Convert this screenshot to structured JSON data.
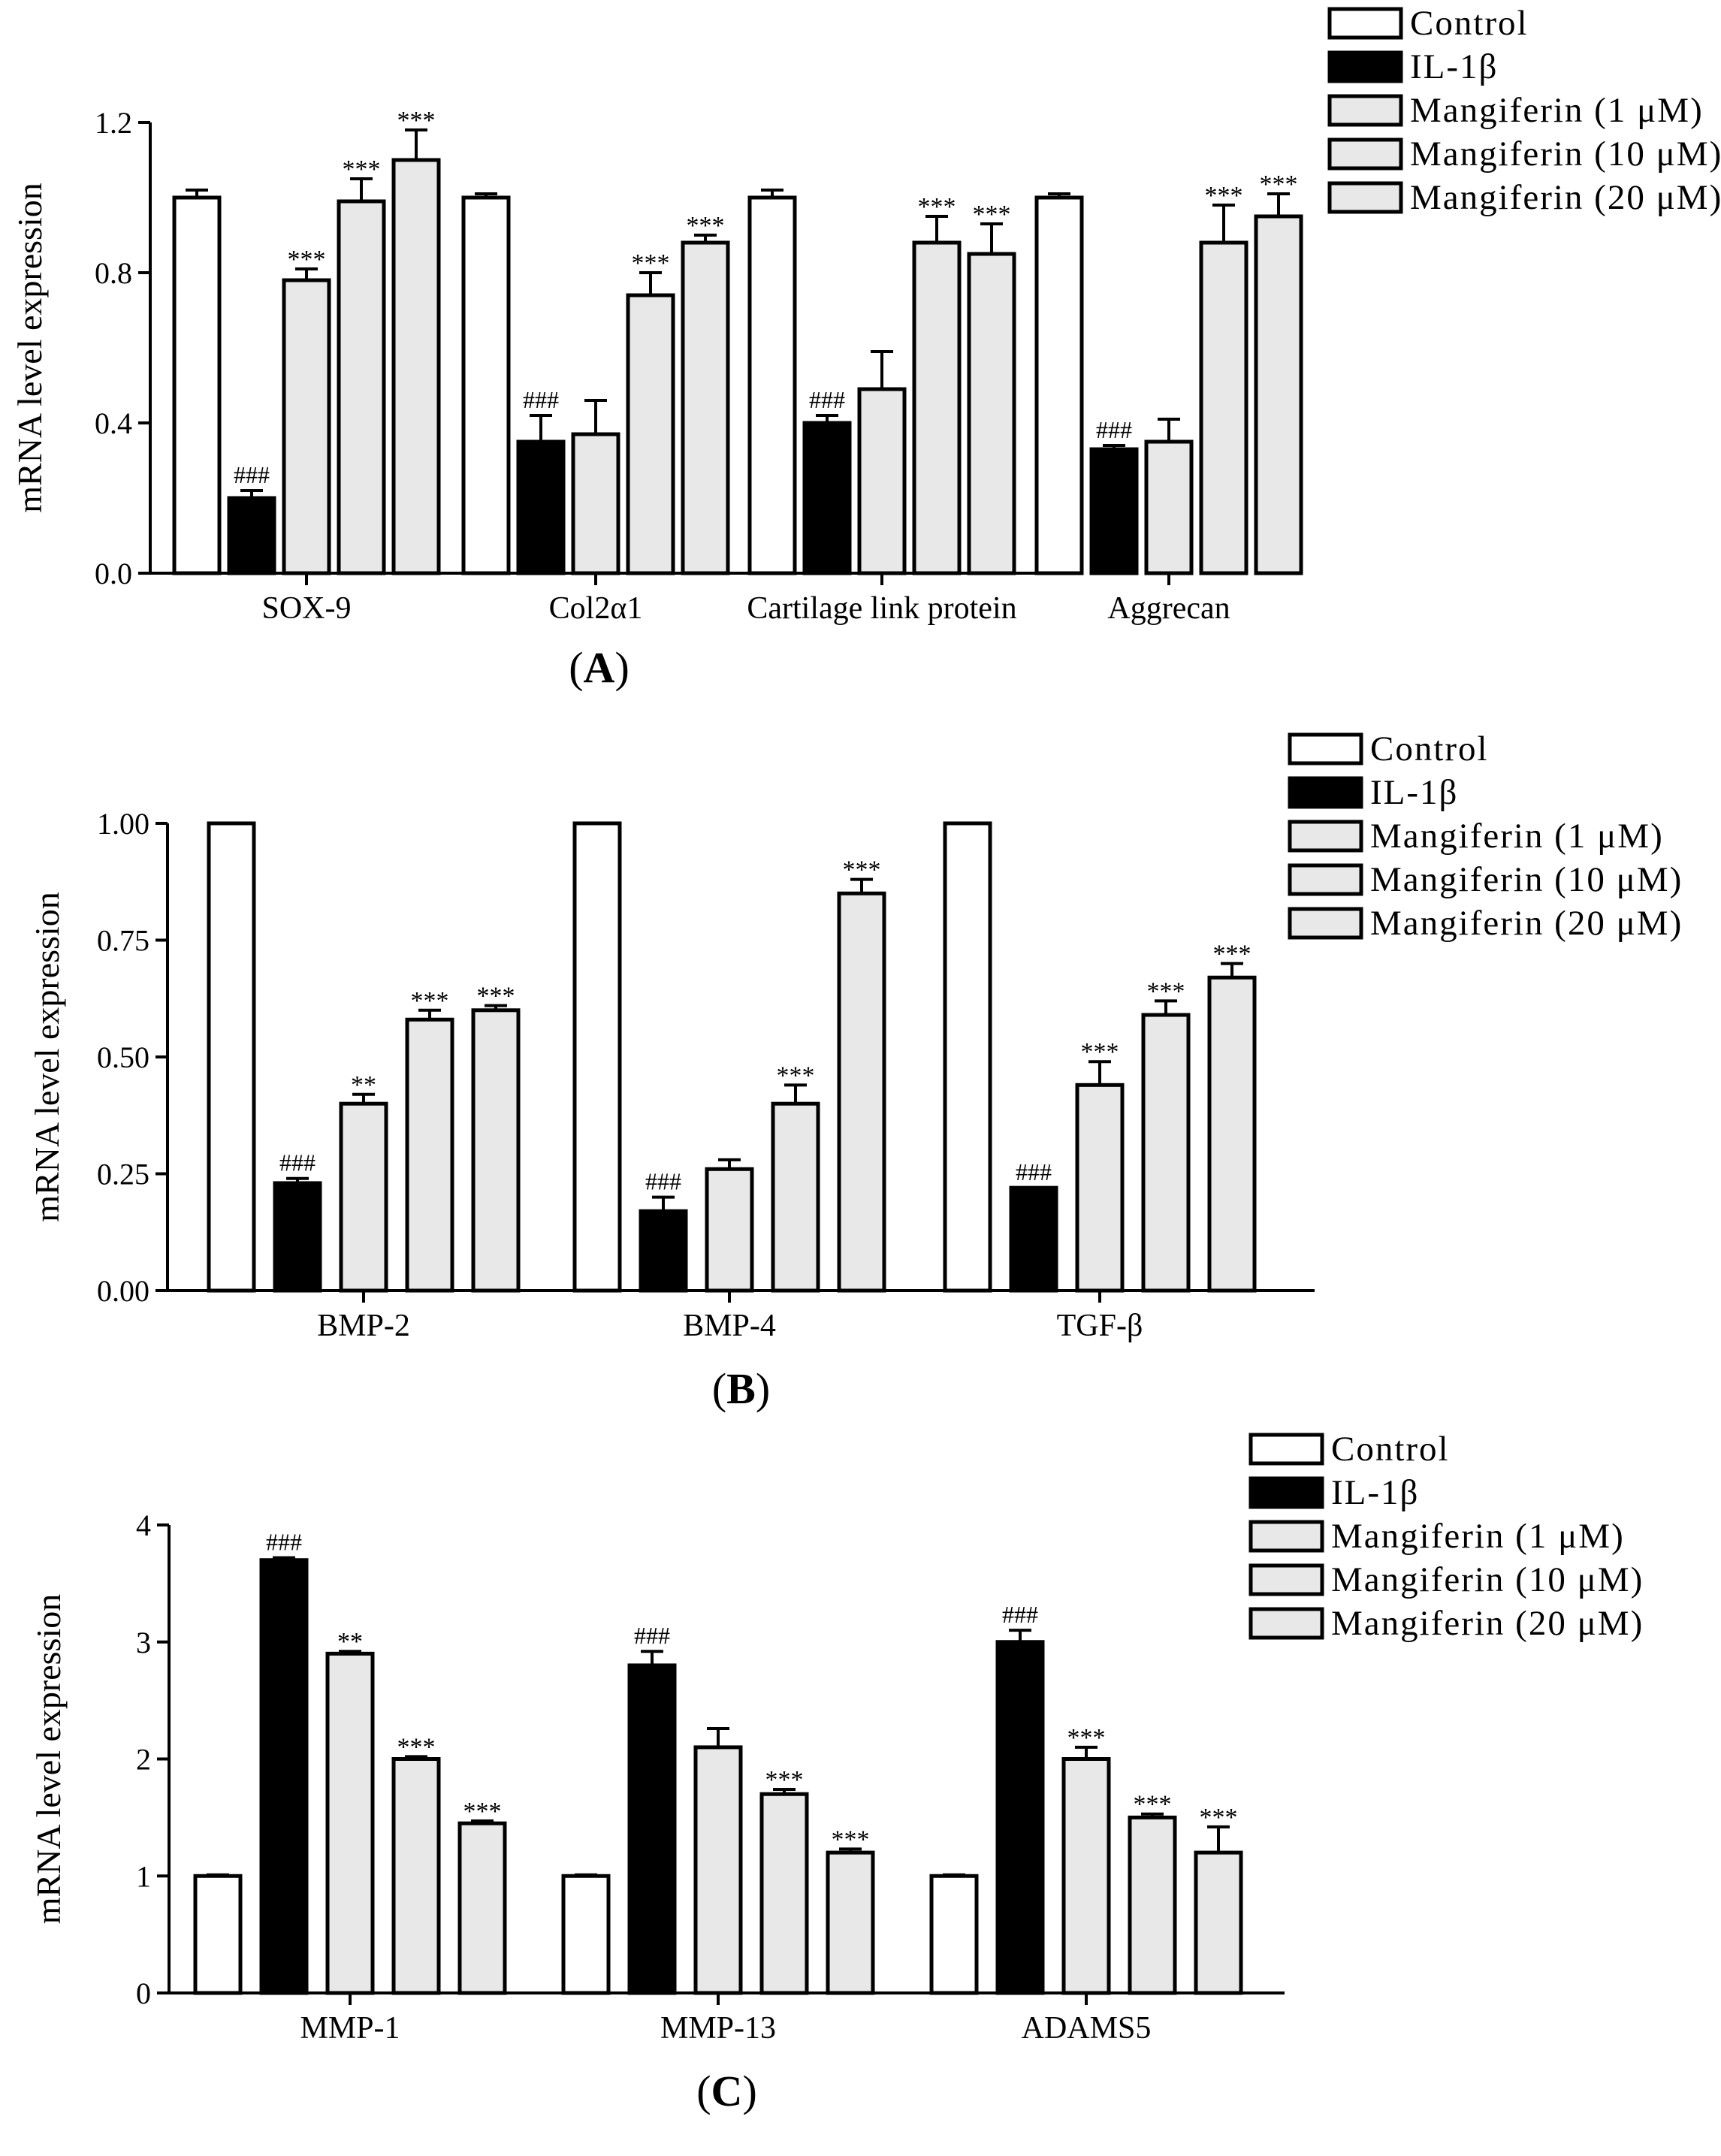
{
  "chart_data": [
    {
      "panel": "(A)",
      "panel_letter": "A",
      "type": "bar",
      "ylabel": "mRNA level expression",
      "ylim": [
        0,
        1.2
      ],
      "yticks": [
        0,
        0.4,
        0.8,
        1.2
      ],
      "ytick_labels": [
        "0.0",
        "0.4",
        "0.8",
        "1.2"
      ],
      "categories": [
        "SOX-9",
        "Col2α1",
        "Cartilage link protein",
        "Aggrecan"
      ],
      "series": [
        {
          "name": "Control",
          "values": [
            1.0,
            1.0,
            1.0,
            1.0
          ],
          "errors": [
            0.02,
            0.01,
            0.02,
            0.01
          ],
          "annotations": [
            "",
            "",
            "",
            ""
          ]
        },
        {
          "name": "IL-1β",
          "values": [
            0.2,
            0.35,
            0.4,
            0.33
          ],
          "errors": [
            0.02,
            0.07,
            0.02,
            0.01
          ],
          "annotations": [
            "###",
            "###",
            "###",
            "###"
          ]
        },
        {
          "name": "Mangiferin (1 μM)",
          "values": [
            0.78,
            0.37,
            0.49,
            0.35
          ],
          "errors": [
            0.03,
            0.09,
            0.1,
            0.06
          ],
          "annotations": [
            "***",
            "",
            "",
            ""
          ]
        },
        {
          "name": "Mangiferin (10 μM)",
          "values": [
            0.99,
            0.74,
            0.88,
            0.88
          ],
          "errors": [
            0.06,
            0.06,
            0.07,
            0.1
          ],
          "annotations": [
            "***",
            "***",
            "***",
            "***"
          ]
        },
        {
          "name": "Mangiferin (20 μM)",
          "values": [
            1.1,
            0.88,
            0.85,
            0.95
          ],
          "errors": [
            0.08,
            0.02,
            0.08,
            0.06
          ],
          "annotations": [
            "***",
            "***",
            "***",
            "***"
          ]
        }
      ]
    },
    {
      "panel": "(B)",
      "panel_letter": "B",
      "type": "bar",
      "ylabel": "mRNA level expression",
      "ylim": [
        0,
        1.0
      ],
      "yticks": [
        0,
        0.25,
        0.5,
        0.75,
        1.0
      ],
      "ytick_labels": [
        "0.00",
        "0.25",
        "0.50",
        "0.75",
        "1.00"
      ],
      "categories": [
        "BMP-2",
        "BMP-4",
        "TGF-β"
      ],
      "series": [
        {
          "name": "Control",
          "values": [
            1.0,
            1.0,
            1.0
          ],
          "errors": [
            0,
            0,
            0
          ],
          "annotations": [
            "",
            "",
            ""
          ]
        },
        {
          "name": "IL-1β",
          "values": [
            0.23,
            0.17,
            0.22
          ],
          "errors": [
            0.01,
            0.03,
            0.0
          ],
          "annotations": [
            "###",
            "###",
            "###"
          ]
        },
        {
          "name": "Mangiferin (1 μM)",
          "values": [
            0.4,
            0.26,
            0.44
          ],
          "errors": [
            0.02,
            0.02,
            0.05
          ],
          "annotations": [
            "**",
            "",
            "***"
          ]
        },
        {
          "name": "Mangiferin (10 μM)",
          "values": [
            0.58,
            0.4,
            0.59
          ],
          "errors": [
            0.02,
            0.04,
            0.03
          ],
          "annotations": [
            "***",
            "***",
            "***"
          ]
        },
        {
          "name": "Mangiferin (20 μM)",
          "values": [
            0.6,
            0.85,
            0.67
          ],
          "errors": [
            0.01,
            0.03,
            0.03
          ],
          "annotations": [
            "***",
            "***",
            "***"
          ]
        }
      ]
    },
    {
      "panel": "(C)",
      "panel_letter": "C",
      "type": "bar",
      "ylabel": "mRNA level expression",
      "ylim": [
        0,
        4
      ],
      "yticks": [
        0,
        1,
        2,
        3,
        4
      ],
      "ytick_labels": [
        "0",
        "1",
        "2",
        "3",
        "4"
      ],
      "categories": [
        "MMP-1",
        "MMP-13",
        "ADAMS5"
      ],
      "series": [
        {
          "name": "Control",
          "values": [
            1.0,
            1.0,
            1.0
          ],
          "errors": [
            0.01,
            0.01,
            0.01
          ],
          "annotations": [
            "",
            "",
            ""
          ]
        },
        {
          "name": "IL-1β",
          "values": [
            3.7,
            2.8,
            3.0
          ],
          "errors": [
            0.02,
            0.12,
            0.1
          ],
          "annotations": [
            "###",
            "###",
            "###"
          ]
        },
        {
          "name": "Mangiferin (1 μM)",
          "values": [
            2.9,
            2.1,
            2.0
          ],
          "errors": [
            0.02,
            0.16,
            0.1
          ],
          "annotations": [
            "**",
            "",
            "***"
          ]
        },
        {
          "name": "Mangiferin (10 μM)",
          "values": [
            2.0,
            1.7,
            1.5
          ],
          "errors": [
            0.02,
            0.04,
            0.03
          ],
          "annotations": [
            "***",
            "***",
            "***"
          ]
        },
        {
          "name": "Mangiferin (20 μM)",
          "values": [
            1.45,
            1.2,
            1.2
          ],
          "errors": [
            0.02,
            0.03,
            0.22
          ],
          "annotations": [
            "***",
            "***",
            "***"
          ]
        }
      ]
    }
  ],
  "colors": {
    "Control": "#ffffff",
    "IL-1β": "#000000",
    "Mangiferin (1 μM)": "#e8e8e8",
    "Mangiferin (10 μM)": "#e8e8e8",
    "Mangiferin (20 μM)": "#e8e8e8",
    "axis": "#000000"
  }
}
